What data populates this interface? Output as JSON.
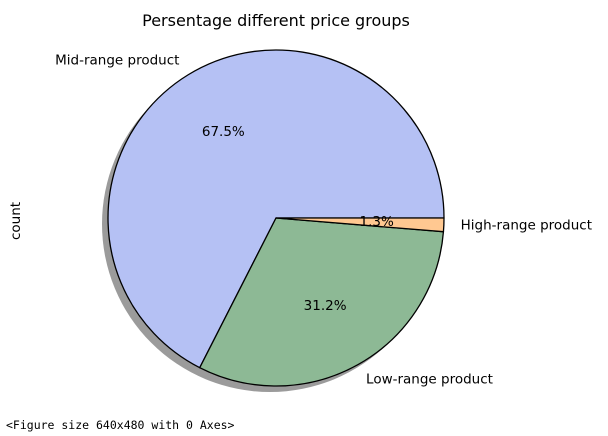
{
  "chart_data": {
    "type": "pie",
    "title": "Persentage different price groups",
    "ylabel": "count",
    "xlabel": "",
    "slices": [
      {
        "label": "Mid-range product",
        "pct_text": "67.5%",
        "value": 67.5,
        "color": "#b5c1f4"
      },
      {
        "label": "Low-range product",
        "pct_text": "31.2%",
        "value": 31.2,
        "color": "#8db995"
      },
      {
        "label": "High-range product",
        "pct_text": "1.3%",
        "value": 1.3,
        "color": "#ffc891"
      }
    ],
    "shadow": true,
    "edge_color": "#000000"
  },
  "footer": {
    "text": "<Figure size 640x480 with 0 Axes>"
  }
}
